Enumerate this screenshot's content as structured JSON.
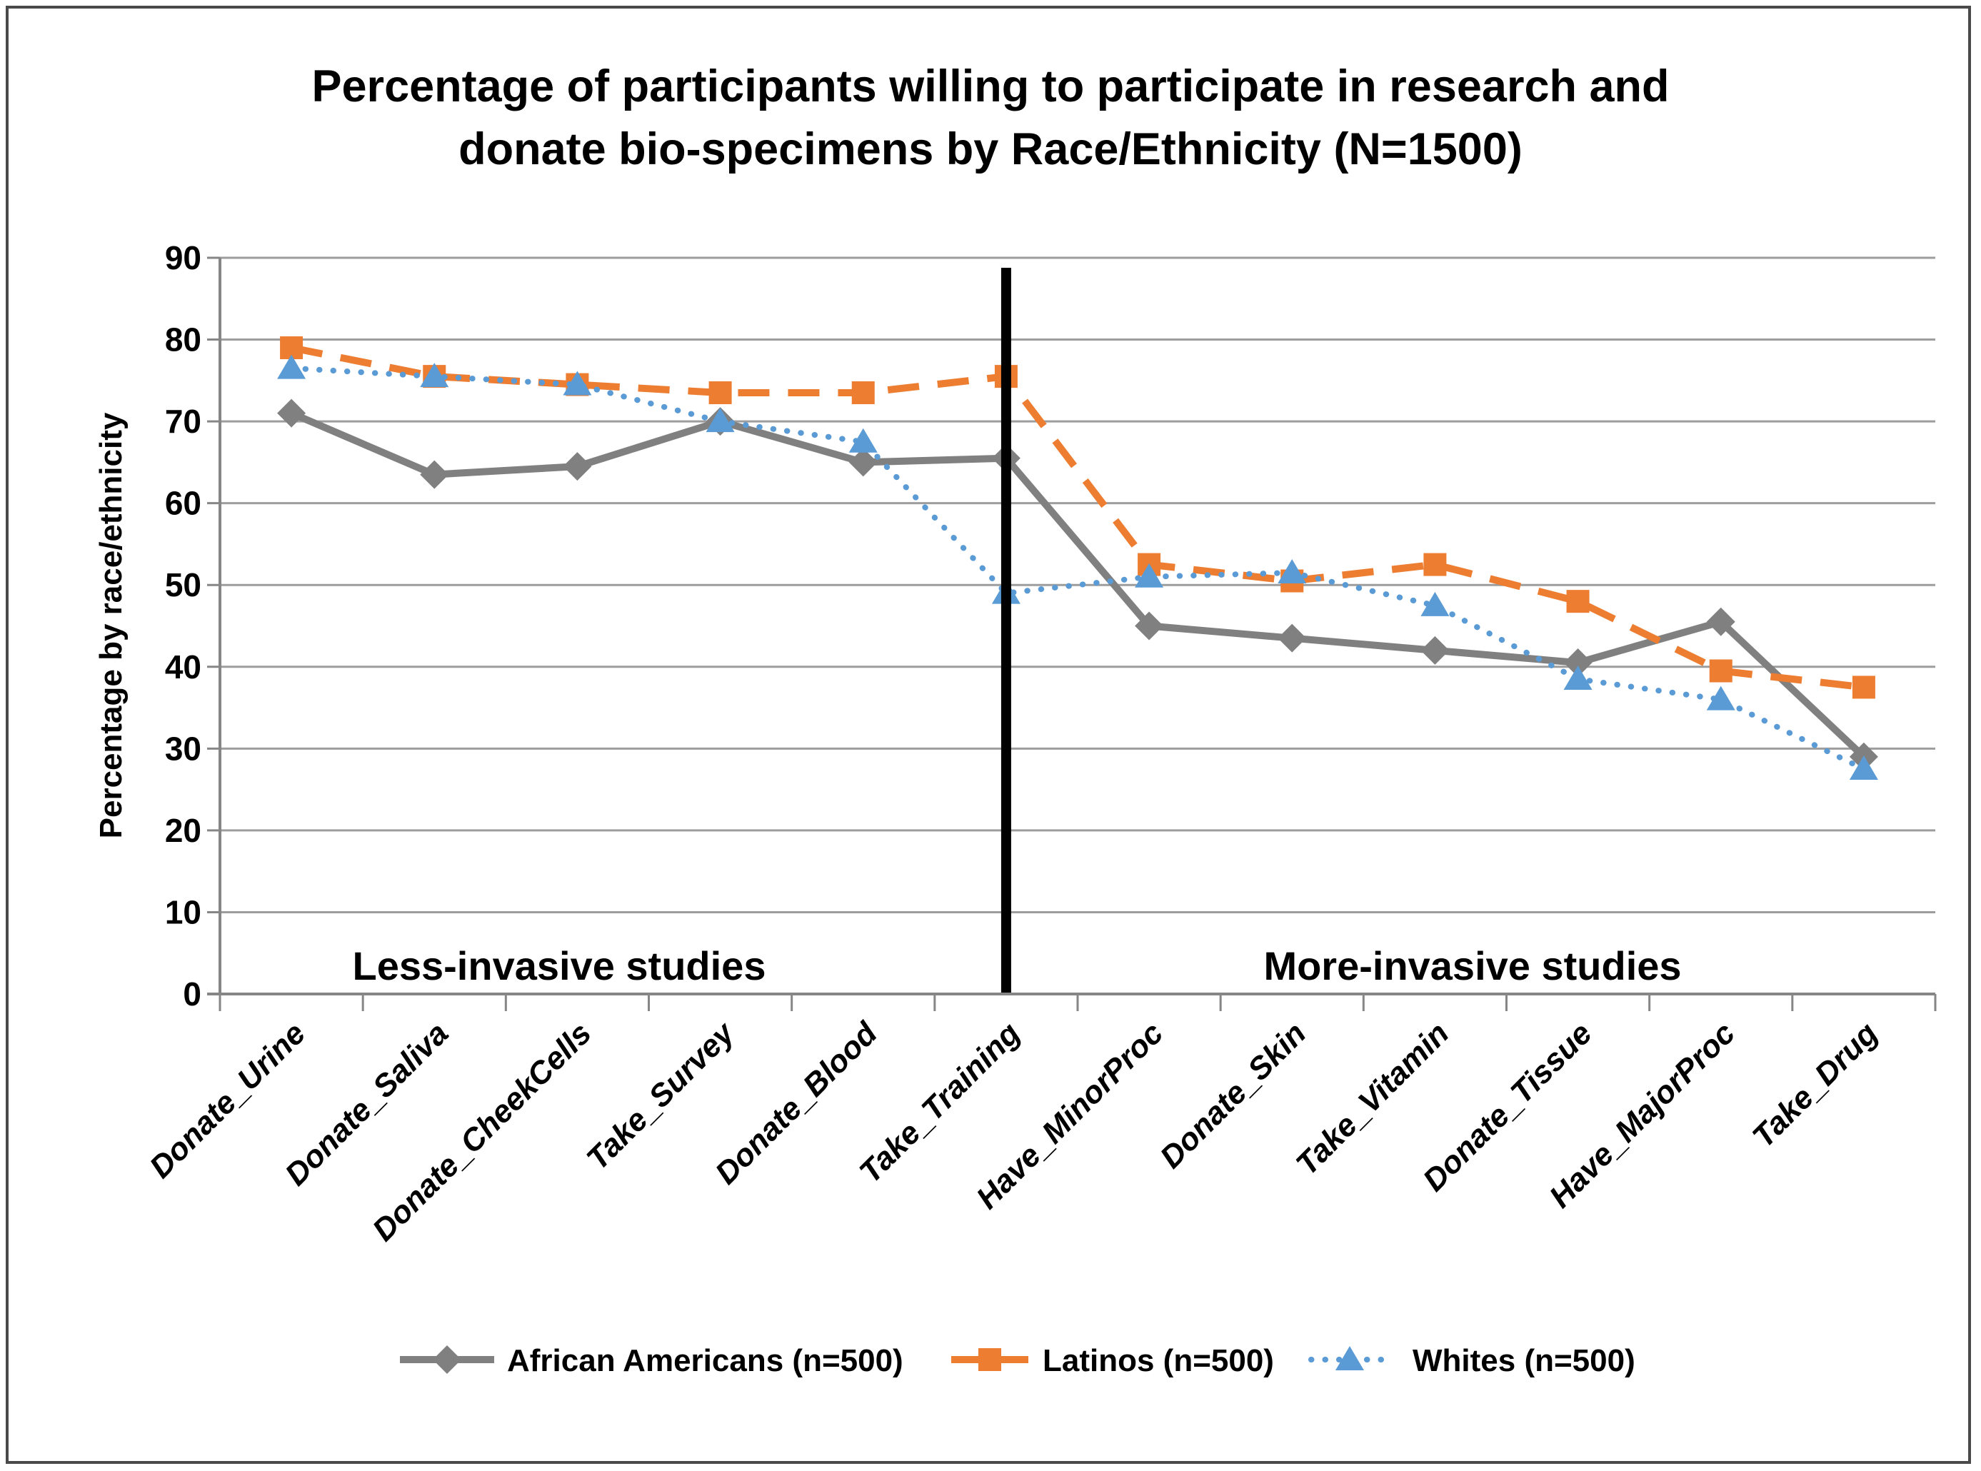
{
  "chart_data": {
    "type": "line",
    "title_line1": "Percentage of participants willing to participate in research and",
    "title_line2": "donate bio-specimens by Race/Ethnicity (N=1500)",
    "ylabel": "Percentage by race/ethnicity",
    "ylim": [
      0,
      90
    ],
    "yticks": [
      0,
      10,
      20,
      30,
      40,
      50,
      60,
      70,
      80,
      90
    ],
    "grid": "horizontal",
    "legend_position": "bottom",
    "categories": [
      "Donate_Urine",
      "Donate_Saliva",
      "Donate_CheekCells",
      "Take_Survey",
      "Donate_Blood",
      "Take_Training",
      "Have_MinorProc",
      "Donate_Skin",
      "Take_Vitamin",
      "Donate_Tissue",
      "Have_MajorProc",
      "Take_Drug"
    ],
    "series": [
      {
        "name": "African Americans (n=500)",
        "color": "#808080",
        "line_style": "solid",
        "marker": "diamond",
        "values": [
          71,
          63.5,
          64.5,
          70,
          65,
          65.5,
          45,
          43.5,
          42,
          40.5,
          45.5,
          29
        ]
      },
      {
        "name": "Latinos (n=500)",
        "color": "#ED7D31",
        "line_style": "dashed",
        "marker": "square",
        "values": [
          79,
          75.5,
          74.5,
          73.5,
          73.5,
          75.5,
          52.5,
          50.5,
          52.5,
          48,
          39.5,
          37.5
        ]
      },
      {
        "name": "Whites  (n=500)",
        "color": "#5B9BD5",
        "line_style": "dotted",
        "marker": "triangle",
        "values": [
          76.5,
          75.5,
          74.5,
          70,
          67.5,
          49,
          51,
          51.5,
          47.5,
          38.5,
          36,
          27.5
        ]
      }
    ],
    "annotations": {
      "divider_after_category": "Take_Training",
      "divider_color": "#000000",
      "left_region_label": "Less-invasive studies",
      "right_region_label": "More-invasive studies"
    }
  }
}
